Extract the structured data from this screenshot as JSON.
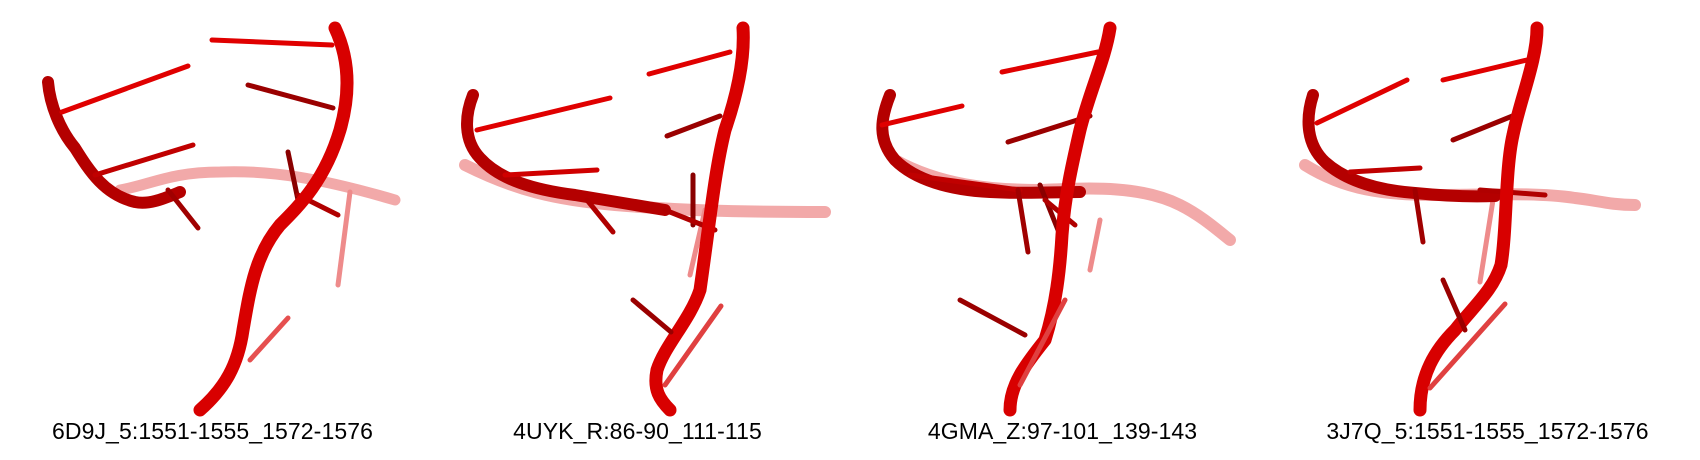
{
  "panels": [
    {
      "label": "6D9J_5:1551-1555_1572-1576"
    },
    {
      "label": "4UYK_R:86-90_111-115"
    },
    {
      "label": "4GMA_Z:97-101_139-143"
    },
    {
      "label": "3J7Q_5:1551-1555_1572-1576"
    }
  ],
  "colors": {
    "strand_front": "#e00000",
    "strand_dark": "#8a0000",
    "strand_faded": "#ee7a7a",
    "caption_text": "#000000"
  }
}
